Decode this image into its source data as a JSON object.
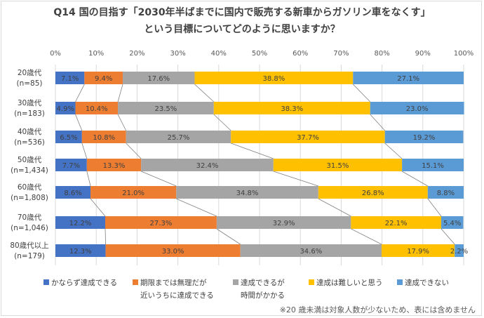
{
  "chart_data": {
    "type": "bar",
    "stacked": true,
    "orientation": "horizontal",
    "title_line1": "Q14 国の目指す「2030年半ばまでに国内で販売する新車からガソリン車をなくす」",
    "title_line2": "という目標についてどのように思いますか？",
    "categories": [
      [
        "20歳代",
        "(n=85)"
      ],
      [
        "30歳代",
        "(n=183)"
      ],
      [
        "40歳代",
        "(n=536)"
      ],
      [
        "50歳代",
        "(n=1,434)"
      ],
      [
        "60歳代",
        "(n=1,808)"
      ],
      [
        "70歳代",
        "(n=1,046)"
      ],
      [
        "80歳代以上",
        "(n=179)"
      ]
    ],
    "x_ticks": [
      "0%",
      "10%",
      "20%",
      "30%",
      "40%",
      "50%",
      "60%",
      "70%",
      "80%",
      "90%",
      "100%"
    ],
    "xlim": [
      0,
      100
    ],
    "grid": true,
    "legend_position": "bottom",
    "series": [
      {
        "name": "かならず達成できる",
        "color": "#4472c4",
        "values": [
          7.1,
          4.9,
          6.5,
          7.7,
          8.6,
          12.2,
          12.3
        ],
        "labels": [
          "7.1%",
          "4.9%",
          "6.5%",
          "7.7%",
          "8.6%",
          "12.2%",
          "12.3%"
        ]
      },
      {
        "name": [
          "期限までは無理だが",
          "近いうちに達成できる"
        ],
        "color": "#ed7d31",
        "values": [
          9.4,
          10.4,
          10.8,
          13.3,
          21.0,
          27.3,
          33.0
        ],
        "labels": [
          "9.4%",
          "10.4%",
          "10.8%",
          "13.3%",
          "21.0%",
          "27.3%",
          "33.0%"
        ]
      },
      {
        "name": [
          "達成できるが",
          "時間がかかる"
        ],
        "color": "#a5a5a5",
        "values": [
          17.6,
          23.5,
          25.7,
          32.4,
          34.8,
          32.9,
          34.6
        ],
        "labels": [
          "17.6%",
          "23.5%",
          "25.7%",
          "32.4%",
          "34.8%",
          "32.9%",
          "34.6%"
        ]
      },
      {
        "name": "達成は難しいと思う",
        "color": "#ffc000",
        "values": [
          38.8,
          38.3,
          37.7,
          31.5,
          26.8,
          22.1,
          17.9
        ],
        "labels": [
          "38.8%",
          "38.3%",
          "37.7%",
          "31.5%",
          "26.8%",
          "22.1%",
          "17.9%"
        ]
      },
      {
        "name": "達成できない",
        "color": "#5b9bd5",
        "values": [
          27.1,
          23.0,
          19.2,
          15.1,
          8.8,
          5.4,
          2.2
        ],
        "labels": [
          "27.1%",
          "23.0%",
          "19.2%",
          "15.1%",
          "8.8%",
          "5.4%",
          "2.2%"
        ]
      }
    ]
  },
  "note": "※20 歳未満は対象人数が少ないため、表には含めません"
}
